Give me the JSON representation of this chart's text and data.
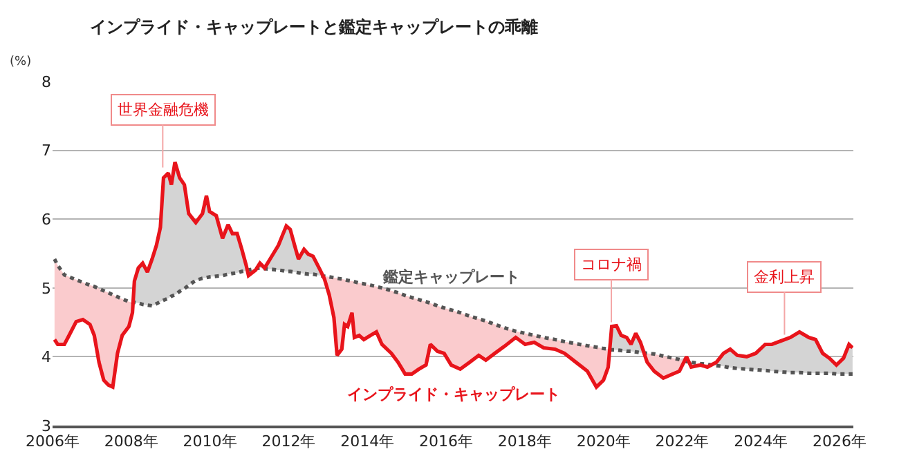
{
  "chart_data": {
    "type": "line",
    "title": "インプライド・キャップレートと鑑定キャップレートの乖離",
    "ylabel": "(%)",
    "xlim": [
      2006,
      2026.35
    ],
    "xticks": [
      {
        "value": 2006,
        "label": "2006年"
      },
      {
        "value": 2008,
        "label": "2008年"
      },
      {
        "value": 2010,
        "label": "2010年"
      },
      {
        "value": 2012,
        "label": "2012年"
      },
      {
        "value": 2014,
        "label": "2014年"
      },
      {
        "value": 2016,
        "label": "2016年"
      },
      {
        "value": 2018,
        "label": "2018年"
      },
      {
        "value": 2020,
        "label": "2020年"
      },
      {
        "value": 2022,
        "label": "2022年"
      },
      {
        "value": 2024,
        "label": "2024年"
      },
      {
        "value": 2026,
        "label": "2026年"
      }
    ],
    "ylim": [
      3,
      8
    ],
    "yticks": [
      3,
      4,
      5,
      6,
      7,
      8
    ],
    "grid": "y",
    "legend": false,
    "x": [
      2006.05,
      2006.13,
      2006.3,
      2006.42,
      2006.6,
      2006.77,
      2006.95,
      2007.06,
      2007.18,
      2007.3,
      2007.42,
      2007.53,
      2007.65,
      2007.77,
      2007.94,
      2008.03,
      2008.08,
      2008.18,
      2008.29,
      2008.41,
      2008.53,
      2008.64,
      2008.74,
      2008.82,
      2008.94,
      2009.02,
      2009.11,
      2009.23,
      2009.35,
      2009.46,
      2009.64,
      2009.81,
      2009.91,
      2009.99,
      2010.16,
      2010.32,
      2010.46,
      2010.57,
      2010.69,
      2010.81,
      2010.92,
      2010.98,
      2011.16,
      2011.27,
      2011.39,
      2011.57,
      2011.74,
      2011.86,
      2011.94,
      2012.04,
      2012.15,
      2012.25,
      2012.39,
      2012.5,
      2012.62,
      2012.8,
      2012.91,
      2013.03,
      2013.15,
      2013.23,
      2013.35,
      2013.42,
      2013.5,
      2013.61,
      2013.67,
      2013.79,
      2013.91,
      2014.08,
      2014.23,
      2014.37,
      2014.61,
      2014.78,
      2014.96,
      2015.13,
      2015.31,
      2015.49,
      2015.6,
      2015.78,
      2015.95,
      2016.13,
      2016.36,
      2016.6,
      2016.83,
      2017.01,
      2017.24,
      2017.48,
      2017.77,
      2018.01,
      2018.24,
      2018.48,
      2018.77,
      2019.01,
      2019.3,
      2019.59,
      2019.82,
      2020.0,
      2020.12,
      2020.21,
      2020.33,
      2020.45,
      2020.59,
      2020.7,
      2020.82,
      2020.94,
      2021.11,
      2021.29,
      2021.52,
      2021.76,
      2021.93,
      2022.11,
      2022.23,
      2022.46,
      2022.64,
      2022.87,
      2023.05,
      2023.22,
      2023.4,
      2023.64,
      2023.87,
      2024.11,
      2024.28,
      2024.51,
      2024.75,
      2024.98,
      2025.22,
      2025.39,
      2025.57,
      2025.74,
      2025.92,
      2026.1,
      2026.24,
      2026.33
    ],
    "series": [
      {
        "name": "インプライド・キャップレート",
        "color": "#e8141b",
        "line_style": "solid",
        "values": [
          4.25,
          4.18,
          4.18,
          4.31,
          4.51,
          4.54,
          4.47,
          4.31,
          3.92,
          3.66,
          3.59,
          3.56,
          4.05,
          4.31,
          4.44,
          4.64,
          5.1,
          5.29,
          5.36,
          5.23,
          5.42,
          5.62,
          5.88,
          6.6,
          6.67,
          6.5,
          6.83,
          6.6,
          6.5,
          6.08,
          5.95,
          6.08,
          6.34,
          6.11,
          6.05,
          5.72,
          5.92,
          5.79,
          5.79,
          5.56,
          5.33,
          5.18,
          5.26,
          5.36,
          5.29,
          5.46,
          5.62,
          5.79,
          5.9,
          5.85,
          5.62,
          5.42,
          5.56,
          5.49,
          5.46,
          5.26,
          5.13,
          4.9,
          4.57,
          4.02,
          4.11,
          4.47,
          4.44,
          4.64,
          4.28,
          4.31,
          4.25,
          4.31,
          4.36,
          4.18,
          4.05,
          3.92,
          3.75,
          3.75,
          3.82,
          3.88,
          4.18,
          4.08,
          4.05,
          3.88,
          3.82,
          3.92,
          4.02,
          3.95,
          4.05,
          4.15,
          4.28,
          4.18,
          4.21,
          4.13,
          4.11,
          4.05,
          3.92,
          3.79,
          3.56,
          3.66,
          3.85,
          4.44,
          4.45,
          4.31,
          4.28,
          4.18,
          4.34,
          4.21,
          3.92,
          3.79,
          3.69,
          3.75,
          3.79,
          4.0,
          3.85,
          3.88,
          3.85,
          3.92,
          4.05,
          4.11,
          4.02,
          4.0,
          4.05,
          4.18,
          4.18,
          4.23,
          4.28,
          4.36,
          4.28,
          4.25,
          4.05,
          3.98,
          3.88,
          3.98,
          4.18,
          4.13
        ],
        "lower": [
          4.25,
          4.18,
          4.18,
          4.31,
          4.51,
          4.54,
          4.47,
          4.31,
          3.92,
          3.66,
          3.59,
          3.56,
          4.05,
          4.31,
          4.44,
          4.64,
          5.1,
          5.29,
          5.36,
          5.23,
          5.42,
          5.62,
          5.88,
          6.6,
          6.67,
          6.5,
          6.83,
          6.6,
          6.5,
          6.08,
          5.95,
          6.08,
          6.34,
          6.11,
          6.05,
          5.72,
          5.92,
          5.79,
          5.79,
          5.56,
          5.33,
          5.18,
          5.26,
          5.36,
          5.29,
          5.46,
          5.62,
          5.79,
          5.9,
          5.85,
          5.62,
          5.42,
          5.56,
          5.49,
          5.46,
          5.26,
          5.13,
          4.9,
          4.57,
          4.02,
          4.11,
          4.47,
          4.44,
          4.64,
          4.28,
          4.31,
          4.25,
          4.31,
          4.36,
          4.18,
          4.05,
          3.92,
          3.75,
          3.75,
          3.82,
          3.88,
          4.18,
          4.08,
          4.05,
          3.88,
          3.82,
          3.92,
          4.02,
          3.95,
          4.05,
          4.15,
          4.28,
          4.18,
          4.21,
          4.13,
          4.11,
          4.05,
          3.92,
          3.79,
          3.56,
          3.66,
          3.85,
          4.44,
          4.45,
          4.31,
          4.28,
          4.18,
          4.34,
          4.21,
          3.92,
          3.79,
          3.69,
          3.75,
          3.79,
          4.0,
          3.85,
          3.88,
          3.85,
          3.92,
          4.05,
          4.11,
          4.02,
          4.0,
          4.05,
          4.18,
          4.18,
          4.23,
          4.28,
          4.36,
          4.28,
          4.25,
          4.05,
          3.98,
          3.88,
          3.98,
          4.18,
          4.13
        ],
        "upper": [
          5.42,
          5.33,
          5.19,
          5.16,
          5.12,
          5.08,
          5.04,
          5.02,
          4.99,
          4.96,
          4.93,
          4.9,
          4.87,
          4.84,
          4.8,
          4.79,
          5.1,
          5.29,
          5.36,
          5.23,
          5.42,
          5.62,
          5.88,
          6.6,
          6.67,
          6.5,
          6.83,
          6.6,
          6.5,
          6.08,
          5.95,
          6.08,
          6.34,
          6.11,
          6.05,
          5.72,
          5.92,
          5.79,
          5.79,
          5.56,
          5.33,
          5.26,
          5.28,
          5.36,
          5.29,
          5.46,
          5.62,
          5.79,
          5.9,
          5.85,
          5.62,
          5.42,
          5.56,
          5.49,
          5.46,
          5.26,
          5.17,
          5.16,
          5.15,
          5.14,
          5.13,
          5.12,
          5.11,
          5.1,
          5.09,
          5.07,
          5.06,
          5.04,
          5.02,
          5.0,
          4.96,
          4.93,
          4.89,
          4.86,
          4.83,
          4.8,
          4.78,
          4.74,
          4.71,
          4.68,
          4.64,
          4.59,
          4.55,
          4.52,
          4.47,
          4.42,
          4.37,
          4.34,
          4.31,
          4.28,
          4.25,
          4.22,
          4.19,
          4.16,
          4.14,
          4.12,
          4.11,
          4.44,
          4.45,
          4.31,
          4.28,
          4.18,
          4.34,
          4.21,
          4.05,
          4.04,
          4.01,
          3.98,
          3.96,
          4.0,
          3.92,
          3.9,
          3.89,
          3.92,
          4.05,
          4.11,
          4.02,
          4.0,
          4.05,
          4.18,
          4.18,
          4.23,
          4.28,
          4.36,
          4.28,
          4.25,
          4.05,
          3.98,
          3.88,
          3.98,
          4.18,
          4.13
        ]
      },
      {
        "name": "鑑定キャップレート",
        "color": "#555555",
        "line_style": "dotted",
        "values": [
          5.42,
          5.33,
          5.19,
          5.16,
          5.12,
          5.08,
          5.04,
          5.02,
          4.99,
          4.96,
          4.93,
          4.9,
          4.87,
          4.84,
          4.8,
          4.79,
          4.79,
          4.78,
          4.76,
          4.75,
          4.74,
          4.77,
          4.8,
          4.82,
          4.85,
          4.88,
          4.9,
          4.95,
          4.99,
          5.04,
          5.11,
          5.14,
          5.15,
          5.16,
          5.17,
          5.18,
          5.2,
          5.21,
          5.22,
          5.24,
          5.25,
          5.26,
          5.28,
          5.29,
          5.28,
          5.27,
          5.26,
          5.25,
          5.24,
          5.24,
          5.23,
          5.22,
          5.21,
          5.2,
          5.2,
          5.18,
          5.17,
          5.16,
          5.15,
          5.14,
          5.13,
          5.12,
          5.11,
          5.1,
          5.09,
          5.07,
          5.06,
          5.04,
          5.02,
          5.0,
          4.96,
          4.93,
          4.89,
          4.86,
          4.83,
          4.8,
          4.78,
          4.74,
          4.71,
          4.68,
          4.64,
          4.59,
          4.55,
          4.52,
          4.47,
          4.42,
          4.37,
          4.34,
          4.31,
          4.28,
          4.25,
          4.22,
          4.19,
          4.16,
          4.14,
          4.12,
          4.11,
          4.1,
          4.1,
          4.09,
          4.08,
          4.08,
          4.07,
          4.06,
          4.05,
          4.04,
          4.01,
          3.98,
          3.96,
          3.93,
          3.92,
          3.9,
          3.89,
          3.87,
          3.86,
          3.84,
          3.83,
          3.82,
          3.81,
          3.8,
          3.79,
          3.78,
          3.77,
          3.77,
          3.76,
          3.76,
          3.76,
          3.76,
          3.75,
          3.75,
          3.75,
          3.75
        ],
        "lower": [
          5.42,
          5.33,
          5.19,
          5.16,
          5.12,
          5.08,
          5.04,
          5.02,
          4.99,
          4.96,
          4.93,
          4.9,
          4.87,
          4.84,
          4.8,
          4.79,
          4.79,
          4.78,
          4.76,
          4.75,
          4.74,
          4.77,
          4.8,
          4.82,
          4.85,
          4.88,
          4.9,
          4.95,
          4.99,
          5.04,
          5.11,
          5.14,
          5.15,
          5.16,
          5.17,
          5.18,
          5.2,
          5.21,
          5.22,
          5.24,
          5.25,
          5.26,
          5.28,
          5.29,
          5.28,
          5.27,
          5.26,
          5.25,
          5.24,
          5.24,
          5.23,
          5.22,
          5.21,
          5.2,
          5.2,
          5.18,
          5.17,
          5.16,
          5.15,
          5.14,
          5.13,
          5.12,
          5.11,
          5.1,
          5.09,
          5.07,
          5.06,
          5.04,
          5.02,
          5.0,
          4.96,
          4.93,
          4.89,
          4.86,
          4.83,
          4.8,
          4.78,
          4.74,
          4.71,
          4.68,
          4.64,
          4.59,
          4.55,
          4.52,
          4.47,
          4.42,
          4.37,
          4.34,
          4.31,
          4.28,
          4.25,
          4.22,
          4.19,
          4.16,
          4.14,
          4.12,
          4.11,
          4.1,
          4.1,
          4.09,
          4.08,
          4.08,
          4.07,
          4.06,
          4.05,
          4.04,
          4.01,
          3.98,
          3.96,
          3.93,
          3.92,
          3.9,
          3.89,
          3.87,
          3.86,
          3.84,
          3.83,
          3.82,
          3.81,
          3.8,
          3.79,
          3.78,
          3.77,
          3.77,
          3.76,
          3.76,
          3.76,
          3.76,
          3.75,
          3.75,
          3.75,
          3.75
        ],
        "upper": [
          5.42,
          5.33,
          5.19,
          5.16,
          5.12,
          5.08,
          5.04,
          5.02,
          4.99,
          4.96,
          4.93,
          4.9,
          4.87,
          4.84,
          4.8,
          4.79,
          5.1,
          5.29,
          5.36,
          5.23,
          5.42,
          5.62,
          5.88,
          6.6,
          6.67,
          6.5,
          6.83,
          6.6,
          6.5,
          6.08,
          5.95,
          6.08,
          6.34,
          6.11,
          6.05,
          5.72,
          5.92,
          5.79,
          5.79,
          5.56,
          5.33,
          5.26,
          5.28,
          5.36,
          5.29,
          5.46,
          5.62,
          5.79,
          5.9,
          5.85,
          5.62,
          5.42,
          5.56,
          5.49,
          5.46,
          5.26,
          5.17,
          5.16,
          5.15,
          5.14,
          5.13,
          5.12,
          5.11,
          5.1,
          5.09,
          5.07,
          5.06,
          5.04,
          5.02,
          5.0,
          4.96,
          4.93,
          4.89,
          4.86,
          4.83,
          4.8,
          4.78,
          4.74,
          4.71,
          4.68,
          4.64,
          4.59,
          4.55,
          4.52,
          4.47,
          4.42,
          4.37,
          4.34,
          4.31,
          4.28,
          4.25,
          4.22,
          4.19,
          4.16,
          4.14,
          4.12,
          4.11,
          4.44,
          4.45,
          4.31,
          4.28,
          4.18,
          4.34,
          4.21,
          4.05,
          4.04,
          4.01,
          3.98,
          3.96,
          4.0,
          3.92,
          3.9,
          3.89,
          3.92,
          4.05,
          4.11,
          4.02,
          4.0,
          4.05,
          4.18,
          4.18,
          4.23,
          4.28,
          4.36,
          4.28,
          4.25,
          4.05,
          3.98,
          3.88,
          3.98,
          4.18,
          4.13
        ]
      }
    ],
    "annotations": [
      {
        "text": "世界金融危機",
        "x": 2008.8,
        "y": 6.75
      },
      {
        "text": "コロナ禍",
        "x": 2020.2,
        "y": 4.5
      },
      {
        "text": "金利上昇",
        "x": 2024.6,
        "y": 4.32
      }
    ]
  }
}
